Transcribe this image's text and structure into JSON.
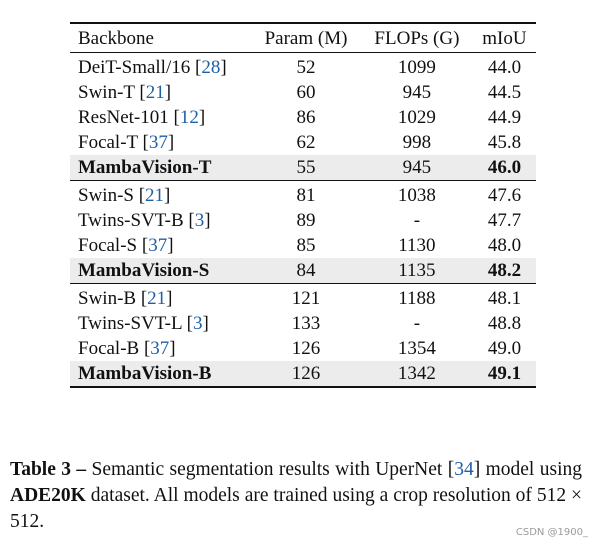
{
  "table": {
    "headers": {
      "backbone": "Backbone",
      "param": "Param (M)",
      "flops": "FLOPs (G)",
      "miou": "mIoU"
    },
    "groups": [
      {
        "rows": [
          {
            "name": "DeiT-Small/16 [",
            "cite": "28",
            "close": "]",
            "param": "52",
            "flops": "1099",
            "miou": "44.0"
          },
          {
            "name": "Swin-T [",
            "cite": "21",
            "close": "]",
            "param": "60",
            "flops": "945",
            "miou": "44.5"
          },
          {
            "name": "ResNet-101 [",
            "cite": "12",
            "close": "]",
            "param": "86",
            "flops": "1029",
            "miou": "44.9"
          },
          {
            "name": "Focal-T [",
            "cite": "37",
            "close": "]",
            "param": "62",
            "flops": "998",
            "miou": "45.8"
          }
        ],
        "highlight": {
          "name": "MambaVision-T",
          "param": "55",
          "flops": "945",
          "miou": "46.0"
        }
      },
      {
        "rows": [
          {
            "name": "Swin-S [",
            "cite": "21",
            "close": "]",
            "param": "81",
            "flops": "1038",
            "miou": "47.6"
          },
          {
            "name": "Twins-SVT-B [",
            "cite": "3",
            "close": "]",
            "param": "89",
            "flops": "-",
            "miou": "47.7"
          },
          {
            "name": "Focal-S [",
            "cite": "37",
            "close": "]",
            "param": "85",
            "flops": "1130",
            "miou": "48.0"
          }
        ],
        "highlight": {
          "name": "MambaVision-S",
          "param": "84",
          "flops": "1135",
          "miou": "48.2"
        }
      },
      {
        "rows": [
          {
            "name": "Swin-B [",
            "cite": "21",
            "close": "]",
            "param": "121",
            "flops": "1188",
            "miou": "48.1"
          },
          {
            "name": "Twins-SVT-L [",
            "cite": "3",
            "close": "]",
            "param": "133",
            "flops": "-",
            "miou": "48.8"
          },
          {
            "name": "Focal-B [",
            "cite": "37",
            "close": "]",
            "param": "126",
            "flops": "1354",
            "miou": "49.0"
          }
        ],
        "highlight": {
          "name": "MambaVision-B",
          "param": "126",
          "flops": "1342",
          "miou": "49.1"
        }
      }
    ]
  },
  "caption": {
    "label": "Table 3 –",
    "part1": " Semantic segmentation results with UperNet [",
    "cite": "34",
    "part2": "] model using ",
    "dataset": "ADE20K",
    "part3": " dataset. All models are trained using a crop resolution of 512 × 512."
  },
  "watermark": "CSDN @1900_",
  "colors": {
    "citation": "#1f5fa6",
    "highlight_row": "#ececec"
  }
}
